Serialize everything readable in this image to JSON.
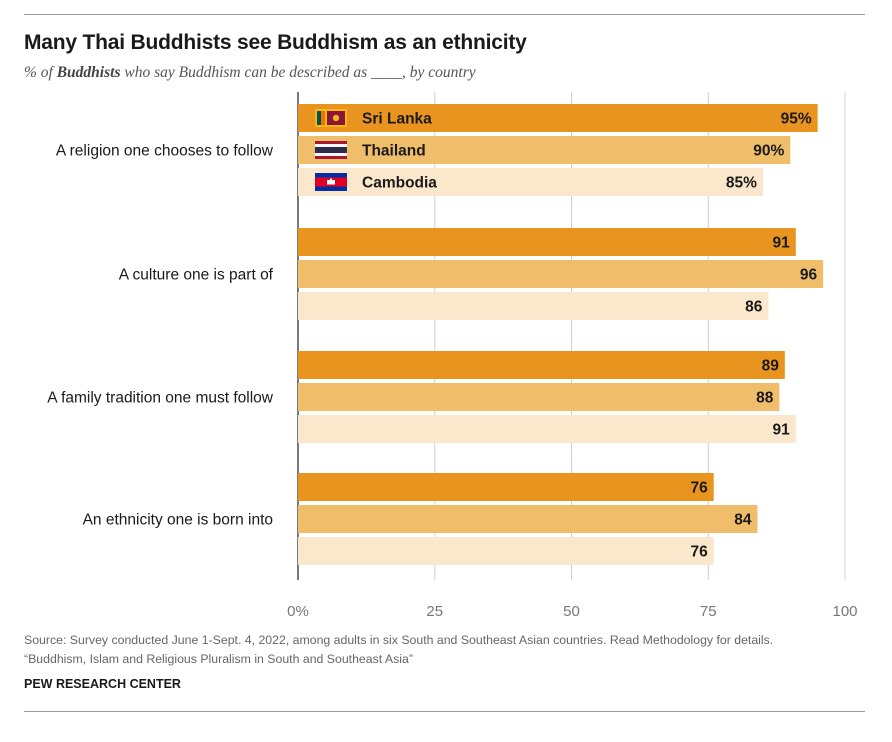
{
  "title": "Many Thai Buddhists see Buddhism as an ethnicity",
  "subtitle": {
    "prefix": "% of ",
    "bold": "Buddhists",
    "suffix": " who say Buddhism can be described as ____, by country"
  },
  "chart_data": {
    "type": "bar",
    "orientation": "horizontal",
    "categories": [
      "A religion one chooses to follow",
      "A culture one is part of",
      "A family tradition one must follow",
      "An ethnicity one is born into"
    ],
    "series": [
      {
        "name": "Sri Lanka",
        "color": "#e8941e",
        "flag": "sri-lanka-flag-icon",
        "values": [
          95,
          91,
          89,
          76
        ]
      },
      {
        "name": "Thailand",
        "color": "#f0bd6b",
        "flag": "thailand-flag-icon",
        "values": [
          90,
          96,
          88,
          84
        ]
      },
      {
        "name": "Cambodia",
        "color": "#fbe8cc",
        "flag": "cambodia-flag-icon",
        "values": [
          85,
          86,
          91,
          76
        ]
      }
    ],
    "first_row_labels": [
      "95%",
      "90%",
      "85%"
    ],
    "xlim": [
      0,
      100
    ],
    "xticks": [
      "0%",
      "25",
      "50",
      "75",
      "100"
    ],
    "xtick_values": [
      0,
      25,
      50,
      75,
      100
    ],
    "grid": true,
    "legend": "inside first group bars"
  },
  "source": {
    "line1": "Source: Survey conducted June 1-Sept. 4, 2022, among adults in six South and Southeast Asian countries. Read Methodology for details.",
    "line2": "“Buddhism, Islam and Religious Pluralism in South and Southeast Asia”"
  },
  "brand": "PEW RESEARCH CENTER"
}
